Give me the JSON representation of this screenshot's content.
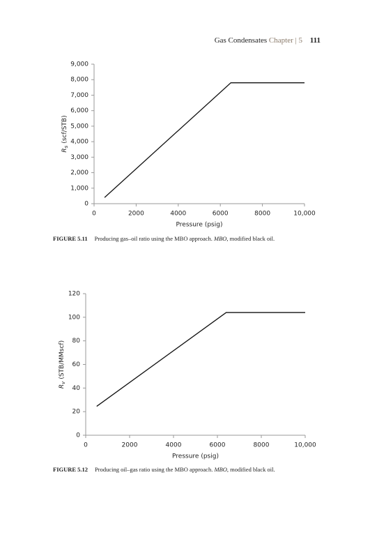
{
  "header": {
    "title": "Gas Condensates",
    "chapter": "Chapter",
    "separator": "|",
    "chapter_number": "5",
    "page_number": "111"
  },
  "captions": [
    {
      "label": "FIGURE 5.11",
      "text": "Producing gas–oil ratio using the MBO approach.",
      "abbr": "MBO",
      "rest": ", modified black oil."
    },
    {
      "label": "FIGURE 5.12",
      "text": "Producing oil–gas ratio using the MBO approach.",
      "abbr": "MBO",
      "rest": ", modified black oil."
    }
  ],
  "chart_data": [
    {
      "type": "line",
      "x_label": "Pressure (psig)",
      "y_label_symbol": "R",
      "y_label_subscript": "s",
      "y_label_unit": "(scf/STB)",
      "x": [
        500,
        6500,
        10000
      ],
      "values": [
        400,
        7800,
        7800
      ],
      "color": "#111111",
      "xlim": [
        0,
        10000
      ],
      "xticks": [
        0,
        2000,
        4000,
        6000,
        8000,
        {
          "value": 10000,
          "label": "10,000"
        }
      ],
      "ylim": [
        0,
        9000
      ],
      "yticks": [
        0,
        {
          "value": 1000,
          "label": "1,000"
        },
        {
          "value": 2000,
          "label": "2,000"
        },
        {
          "value": 3000,
          "label": "3,000"
        },
        {
          "value": 4000,
          "label": "4,000"
        },
        {
          "value": 5000,
          "label": "5,000"
        },
        {
          "value": 6000,
          "label": "6,000"
        },
        {
          "value": 7000,
          "label": "7,000"
        },
        {
          "value": 8000,
          "label": "8,000"
        },
        {
          "value": 9000,
          "label": "9,000"
        }
      ],
      "grid": false
    },
    {
      "type": "line",
      "x_label": "Pressure (psig)",
      "y_label_symbol": "R",
      "y_label_subscript": "v",
      "y_label_unit": "(STB/MMscf)",
      "x": [
        500,
        6400,
        10000
      ],
      "values": [
        24.5,
        104,
        104
      ],
      "color": "#111111",
      "xlim": [
        0,
        10000
      ],
      "xticks": [
        0,
        2000,
        4000,
        6000,
        8000,
        {
          "value": 10000,
          "label": "10,000"
        }
      ],
      "ylim": [
        0,
        120
      ],
      "yticks": [
        0,
        20,
        40,
        60,
        80,
        100,
        120
      ],
      "grid": false
    }
  ]
}
